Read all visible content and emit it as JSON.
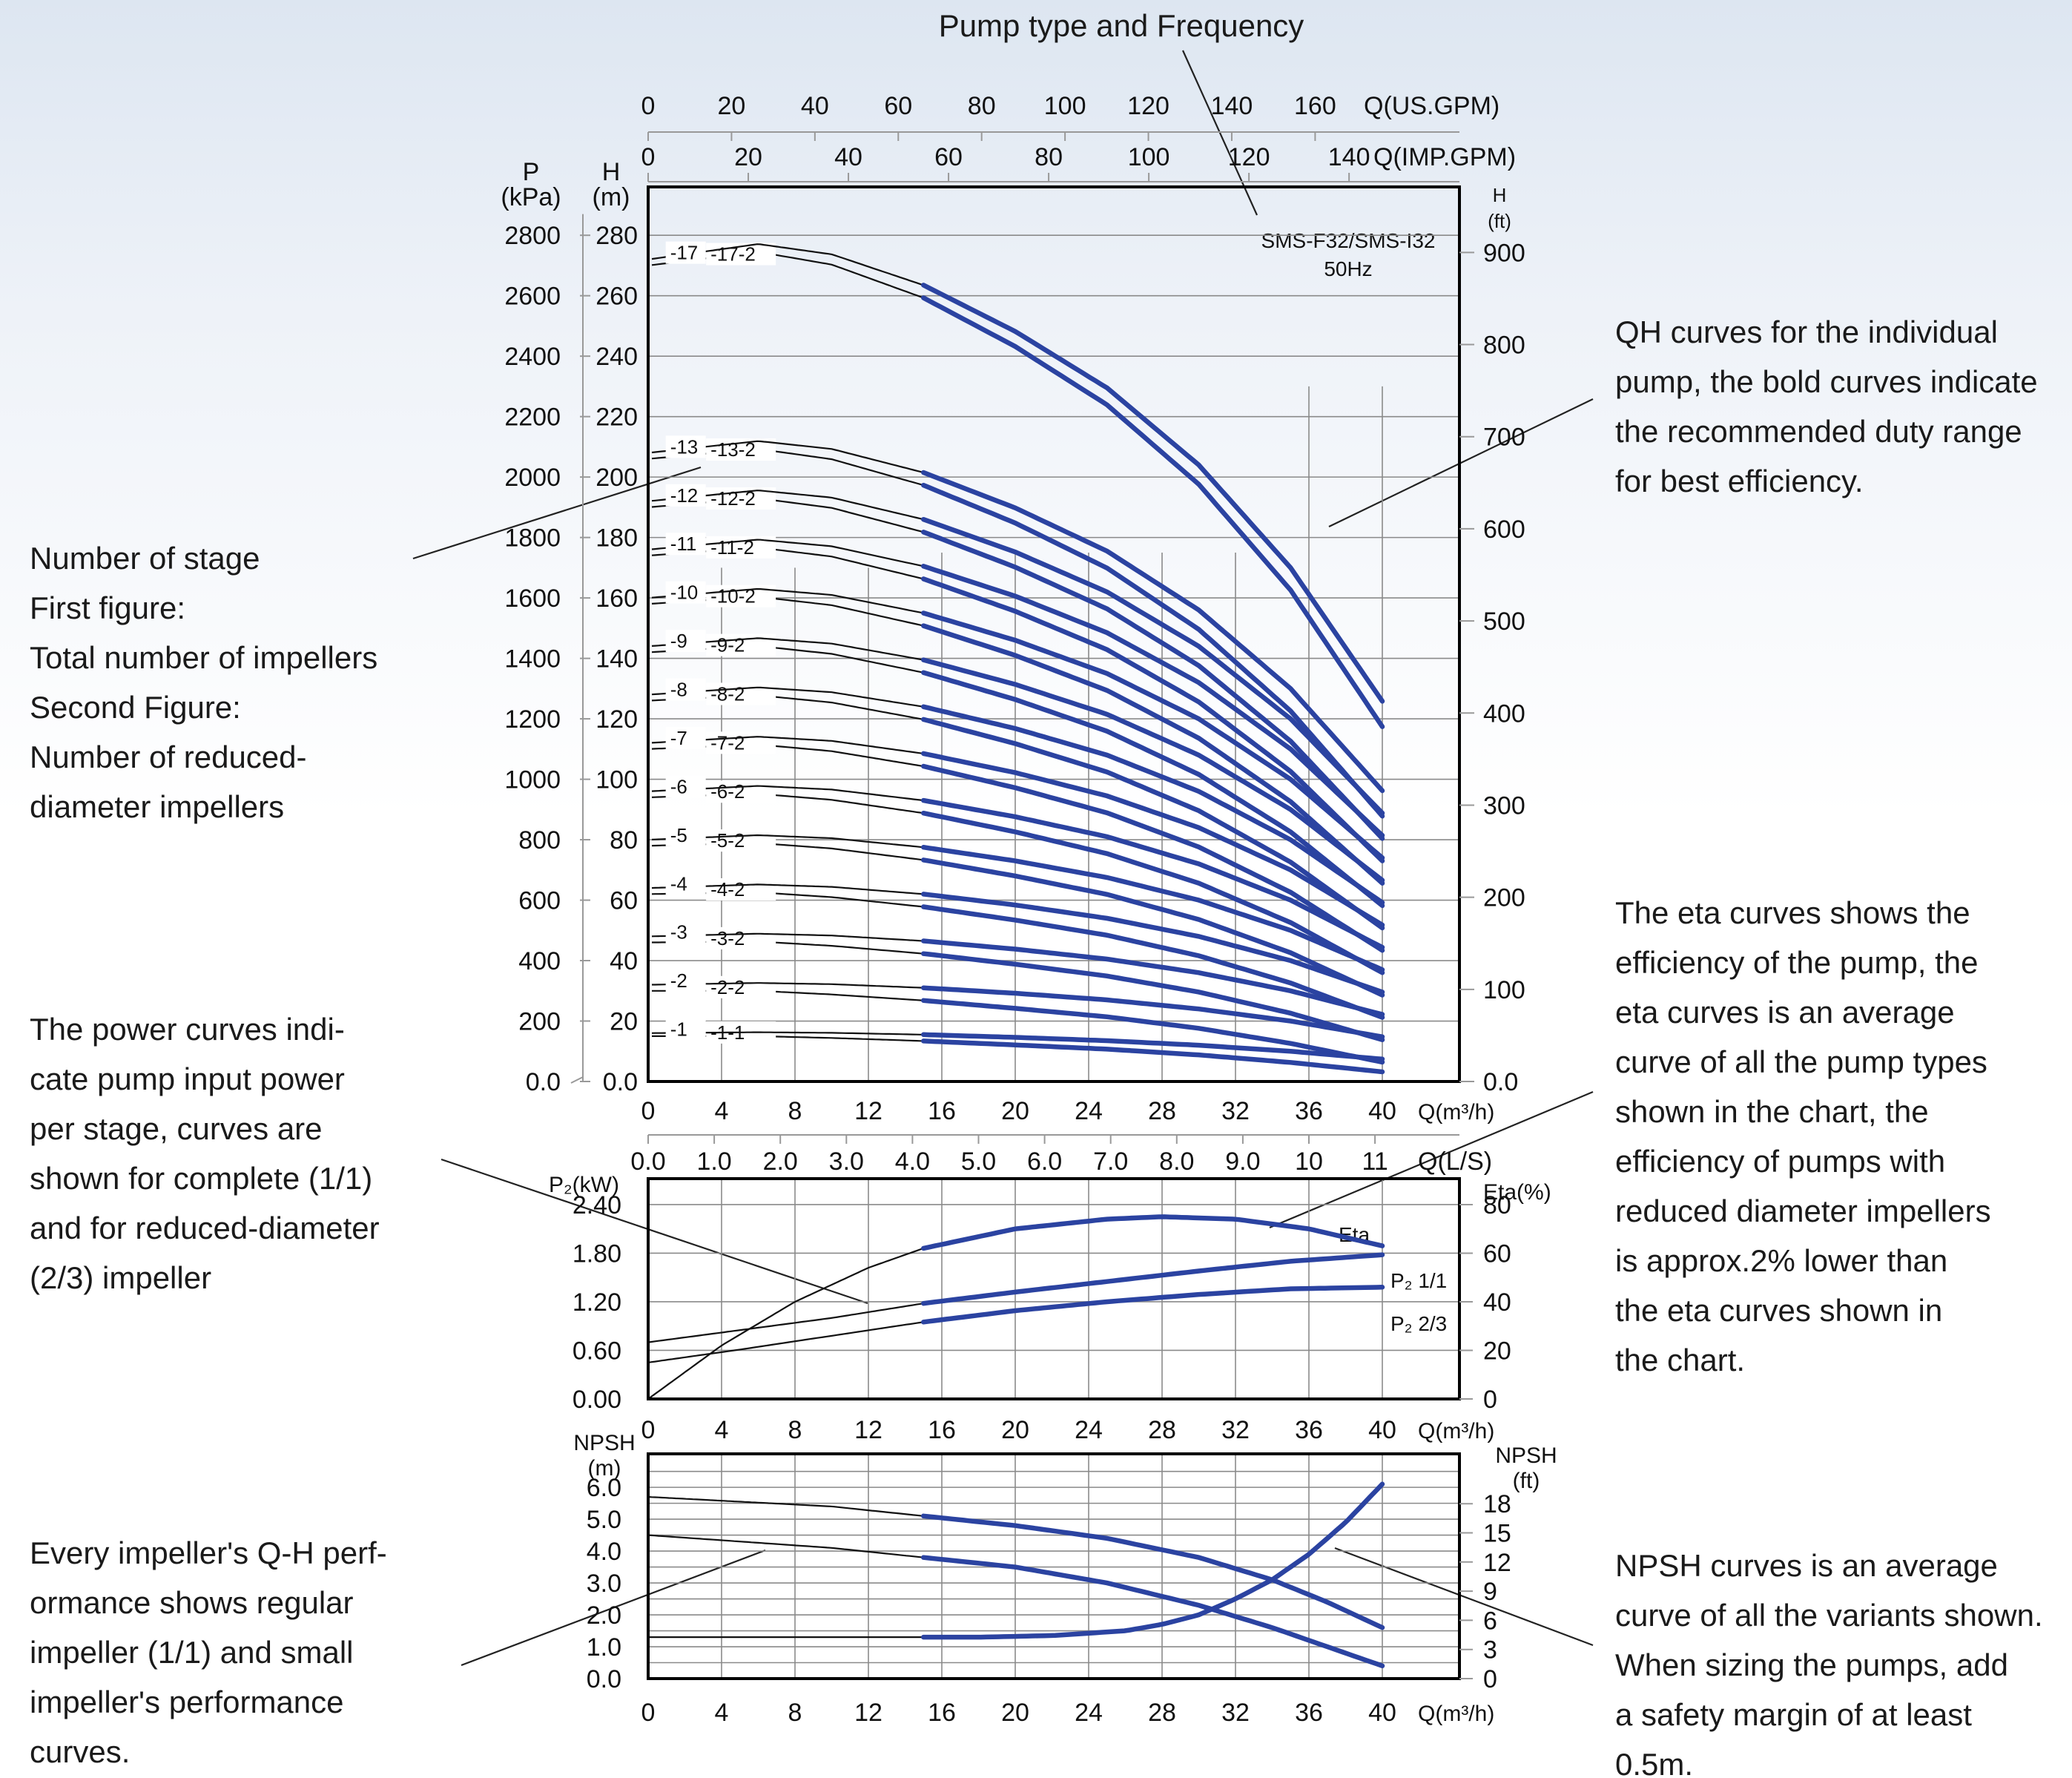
{
  "header": {
    "caption": "Pump type and Frequency"
  },
  "chart_label": {
    "line1": "SMS-F32/SMS-I32",
    "line2": "50Hz"
  },
  "annotations": {
    "stage": [
      "Number of stage",
      "First figure:",
      "Total number of impellers",
      "Second Figure:",
      "Number of reduced-",
      "diameter impellers"
    ],
    "qh": [
      "QH curves  for  the individual",
      "pump, the bold curves indicate",
      "the recommended duty range",
      "for best efficiency."
    ],
    "power": [
      "The power curves indi-",
      "cate pump input power",
      "per stage, curves are",
      "shown for complete (1/1)",
      "and for reduced-diameter",
      "(2/3) impeller"
    ],
    "eta": [
      "The eta curves shows the",
      "efficiency of the pump, the",
      "eta curves is an average",
      "curve of all the pump types",
      "shown in the chart, the",
      "efficiency of pumps with",
      "reduced diameter impellers",
      "is approx.2% lower than",
      "the eta curves shown in",
      "the chart."
    ],
    "impeller": [
      "Every impeller's Q-H perf-",
      "ormance shows regular",
      "impeller (1/1) and small",
      "impeller's performance",
      "curves."
    ],
    "npsh": [
      "NPSH curves is an average",
      "curve of all the variants shown.",
      "When sizing the pumps, add",
      "a safety margin of at least",
      "0.5m."
    ]
  },
  "axes": {
    "us_gpm": {
      "label": "Q(US.GPM)",
      "ticks": [
        "0",
        "20",
        "40",
        "60",
        "80",
        "100",
        "120",
        "140",
        "160"
      ]
    },
    "imp_gpm": {
      "label": "Q(IMP.GPM)",
      "ticks": [
        "0",
        "20",
        "40",
        "60",
        "80",
        "100",
        "120",
        "140"
      ]
    },
    "q_m3h": {
      "label": "Q(m³/h)",
      "ticks": [
        "0",
        "4",
        "8",
        "12",
        "16",
        "20",
        "24",
        "28",
        "32",
        "36",
        "40"
      ]
    },
    "q_ls": {
      "label": "Q(L/S)",
      "ticks": [
        "0.0",
        "1.0",
        "2.0",
        "3.0",
        "4.0",
        "5.0",
        "6.0",
        "7.0",
        "8.0",
        "9.0",
        "10",
        "11"
      ]
    },
    "pressure": {
      "title": "P",
      "unit": "(kPa)",
      "ticks": [
        "0.0",
        "200",
        "400",
        "600",
        "800",
        "1000",
        "1200",
        "1400",
        "1600",
        "1800",
        "2000",
        "2200",
        "2400",
        "2600",
        "2800"
      ]
    },
    "head_m": {
      "title": "H",
      "unit": "(m)",
      "ticks": [
        "0.0",
        "20",
        "40",
        "60",
        "80",
        "100",
        "120",
        "140",
        "160",
        "180",
        "200",
        "220",
        "240",
        "260",
        "280"
      ]
    },
    "head_ft": {
      "title": "H",
      "unit": "(ft)",
      "ticks": [
        "0.0",
        "100",
        "200",
        "300",
        "400",
        "500",
        "600",
        "700",
        "800",
        "900"
      ]
    },
    "power_kw": {
      "label": "P₂(kW)",
      "ticks": [
        "0.00",
        "0.60",
        "1.20",
        "1.80",
        "2.40"
      ]
    },
    "eta_pct": {
      "label": "Eta(%)",
      "ticks": [
        "0",
        "20",
        "40",
        "60",
        "80"
      ]
    },
    "npsh_m": {
      "title": "NPSH",
      "unit": "(m)",
      "ticks": [
        "0.0",
        "1.0",
        "2.0",
        "3.0",
        "4.0",
        "5.0",
        "6.0"
      ]
    },
    "npsh_ft": {
      "title": "NPSH",
      "unit": "(ft)",
      "ticks": [
        "0",
        "3",
        "6",
        "9",
        "12",
        "15",
        "18"
      ]
    }
  },
  "chart_data": [
    {
      "type": "line",
      "title": "SMS-F32/SMS-I32 50Hz",
      "xlabel": "Q(m³/h)",
      "ylabel": "H (m)",
      "xlim": [
        0,
        44
      ],
      "ylim": [
        0,
        296
      ],
      "duty_range_m3h": [
        15,
        40
      ],
      "per_stage": {
        "full_impeller_head_m": {
          "x": [
            0,
            6,
            10,
            15,
            20,
            25,
            30,
            35,
            40
          ],
          "y": [
            16.0,
            16.3,
            16.1,
            15.5,
            14.6,
            13.5,
            12.0,
            10.0,
            7.4
          ]
        },
        "reduced_impeller_head_drop_m": {
          "x": [
            0,
            6,
            10,
            15,
            20,
            25,
            30,
            35,
            40
          ],
          "y": [
            1.0,
            1.3,
            1.7,
            2.1,
            2.5,
            2.8,
            3.2,
            3.7,
            4.2
          ]
        }
      },
      "series": [
        {
          "name": "-1-1"
        },
        {
          "name": "-1"
        },
        {
          "name": "-2-2"
        },
        {
          "name": "-2"
        },
        {
          "name": "-3-2"
        },
        {
          "name": "-3"
        },
        {
          "name": "-4-2"
        },
        {
          "name": "-4"
        },
        {
          "name": "-5-2"
        },
        {
          "name": "-5"
        },
        {
          "name": "-6-2"
        },
        {
          "name": "-6"
        },
        {
          "name": "-7-2"
        },
        {
          "name": "-7"
        },
        {
          "name": "-8-2"
        },
        {
          "name": "-8"
        },
        {
          "name": "-9-2"
        },
        {
          "name": "-9"
        },
        {
          "name": "-10-2"
        },
        {
          "name": "-10"
        },
        {
          "name": "-11-2"
        },
        {
          "name": "-11"
        },
        {
          "name": "-12-2"
        },
        {
          "name": "-12"
        },
        {
          "name": "-13-2"
        },
        {
          "name": "-13"
        },
        {
          "name": "-17-2"
        },
        {
          "name": "-17"
        }
      ]
    },
    {
      "type": "line",
      "xlabel": "Q(m³/h)",
      "ylabel": "P₂(kW)",
      "xlim": [
        0,
        44
      ],
      "ylim": [
        0,
        2.4
      ],
      "y2label": "Eta(%)",
      "y2lim": [
        0,
        80
      ],
      "series": [
        {
          "name": "Eta",
          "axis": "right",
          "x": [
            0,
            4,
            8,
            12,
            15,
            20,
            25,
            28,
            32,
            36,
            40
          ],
          "y": [
            0,
            22,
            40,
            54,
            62,
            70,
            74,
            75,
            74,
            70,
            63
          ]
        },
        {
          "name": "P₂ 1/1",
          "axis": "left",
          "x": [
            0,
            5,
            10,
            15,
            20,
            25,
            30,
            35,
            40
          ],
          "y": [
            0.7,
            0.85,
            1.0,
            1.18,
            1.32,
            1.45,
            1.58,
            1.7,
            1.78
          ]
        },
        {
          "name": "P₂ 2/3",
          "axis": "left",
          "x": [
            0,
            5,
            10,
            15,
            20,
            25,
            30,
            35,
            40
          ],
          "y": [
            0.45,
            0.61,
            0.78,
            0.95,
            1.09,
            1.2,
            1.29,
            1.36,
            1.38
          ]
        }
      ]
    },
    {
      "type": "line",
      "xlabel": "Q(m³/h)",
      "ylabel": "NPSH (m)",
      "xlim": [
        0,
        44
      ],
      "ylim": [
        0,
        6.2
      ],
      "series": [
        {
          "x": [
            0,
            10,
            15,
            20,
            25,
            30,
            34,
            37,
            40
          ],
          "y": [
            5.7,
            5.4,
            5.1,
            4.8,
            4.4,
            3.8,
            3.1,
            2.4,
            1.6
          ]
        },
        {
          "x": [
            0,
            10,
            15,
            20,
            25,
            30,
            34,
            37,
            40
          ],
          "y": [
            4.5,
            4.1,
            3.8,
            3.5,
            3.0,
            2.3,
            1.6,
            1.0,
            0.4
          ]
        },
        {
          "x": [
            0,
            15,
            18,
            22,
            26,
            28,
            30,
            32,
            34,
            36,
            38,
            40
          ],
          "y": [
            1.3,
            1.3,
            1.3,
            1.35,
            1.5,
            1.7,
            2.0,
            2.5,
            3.1,
            3.9,
            4.9,
            6.1
          ]
        }
      ]
    }
  ]
}
